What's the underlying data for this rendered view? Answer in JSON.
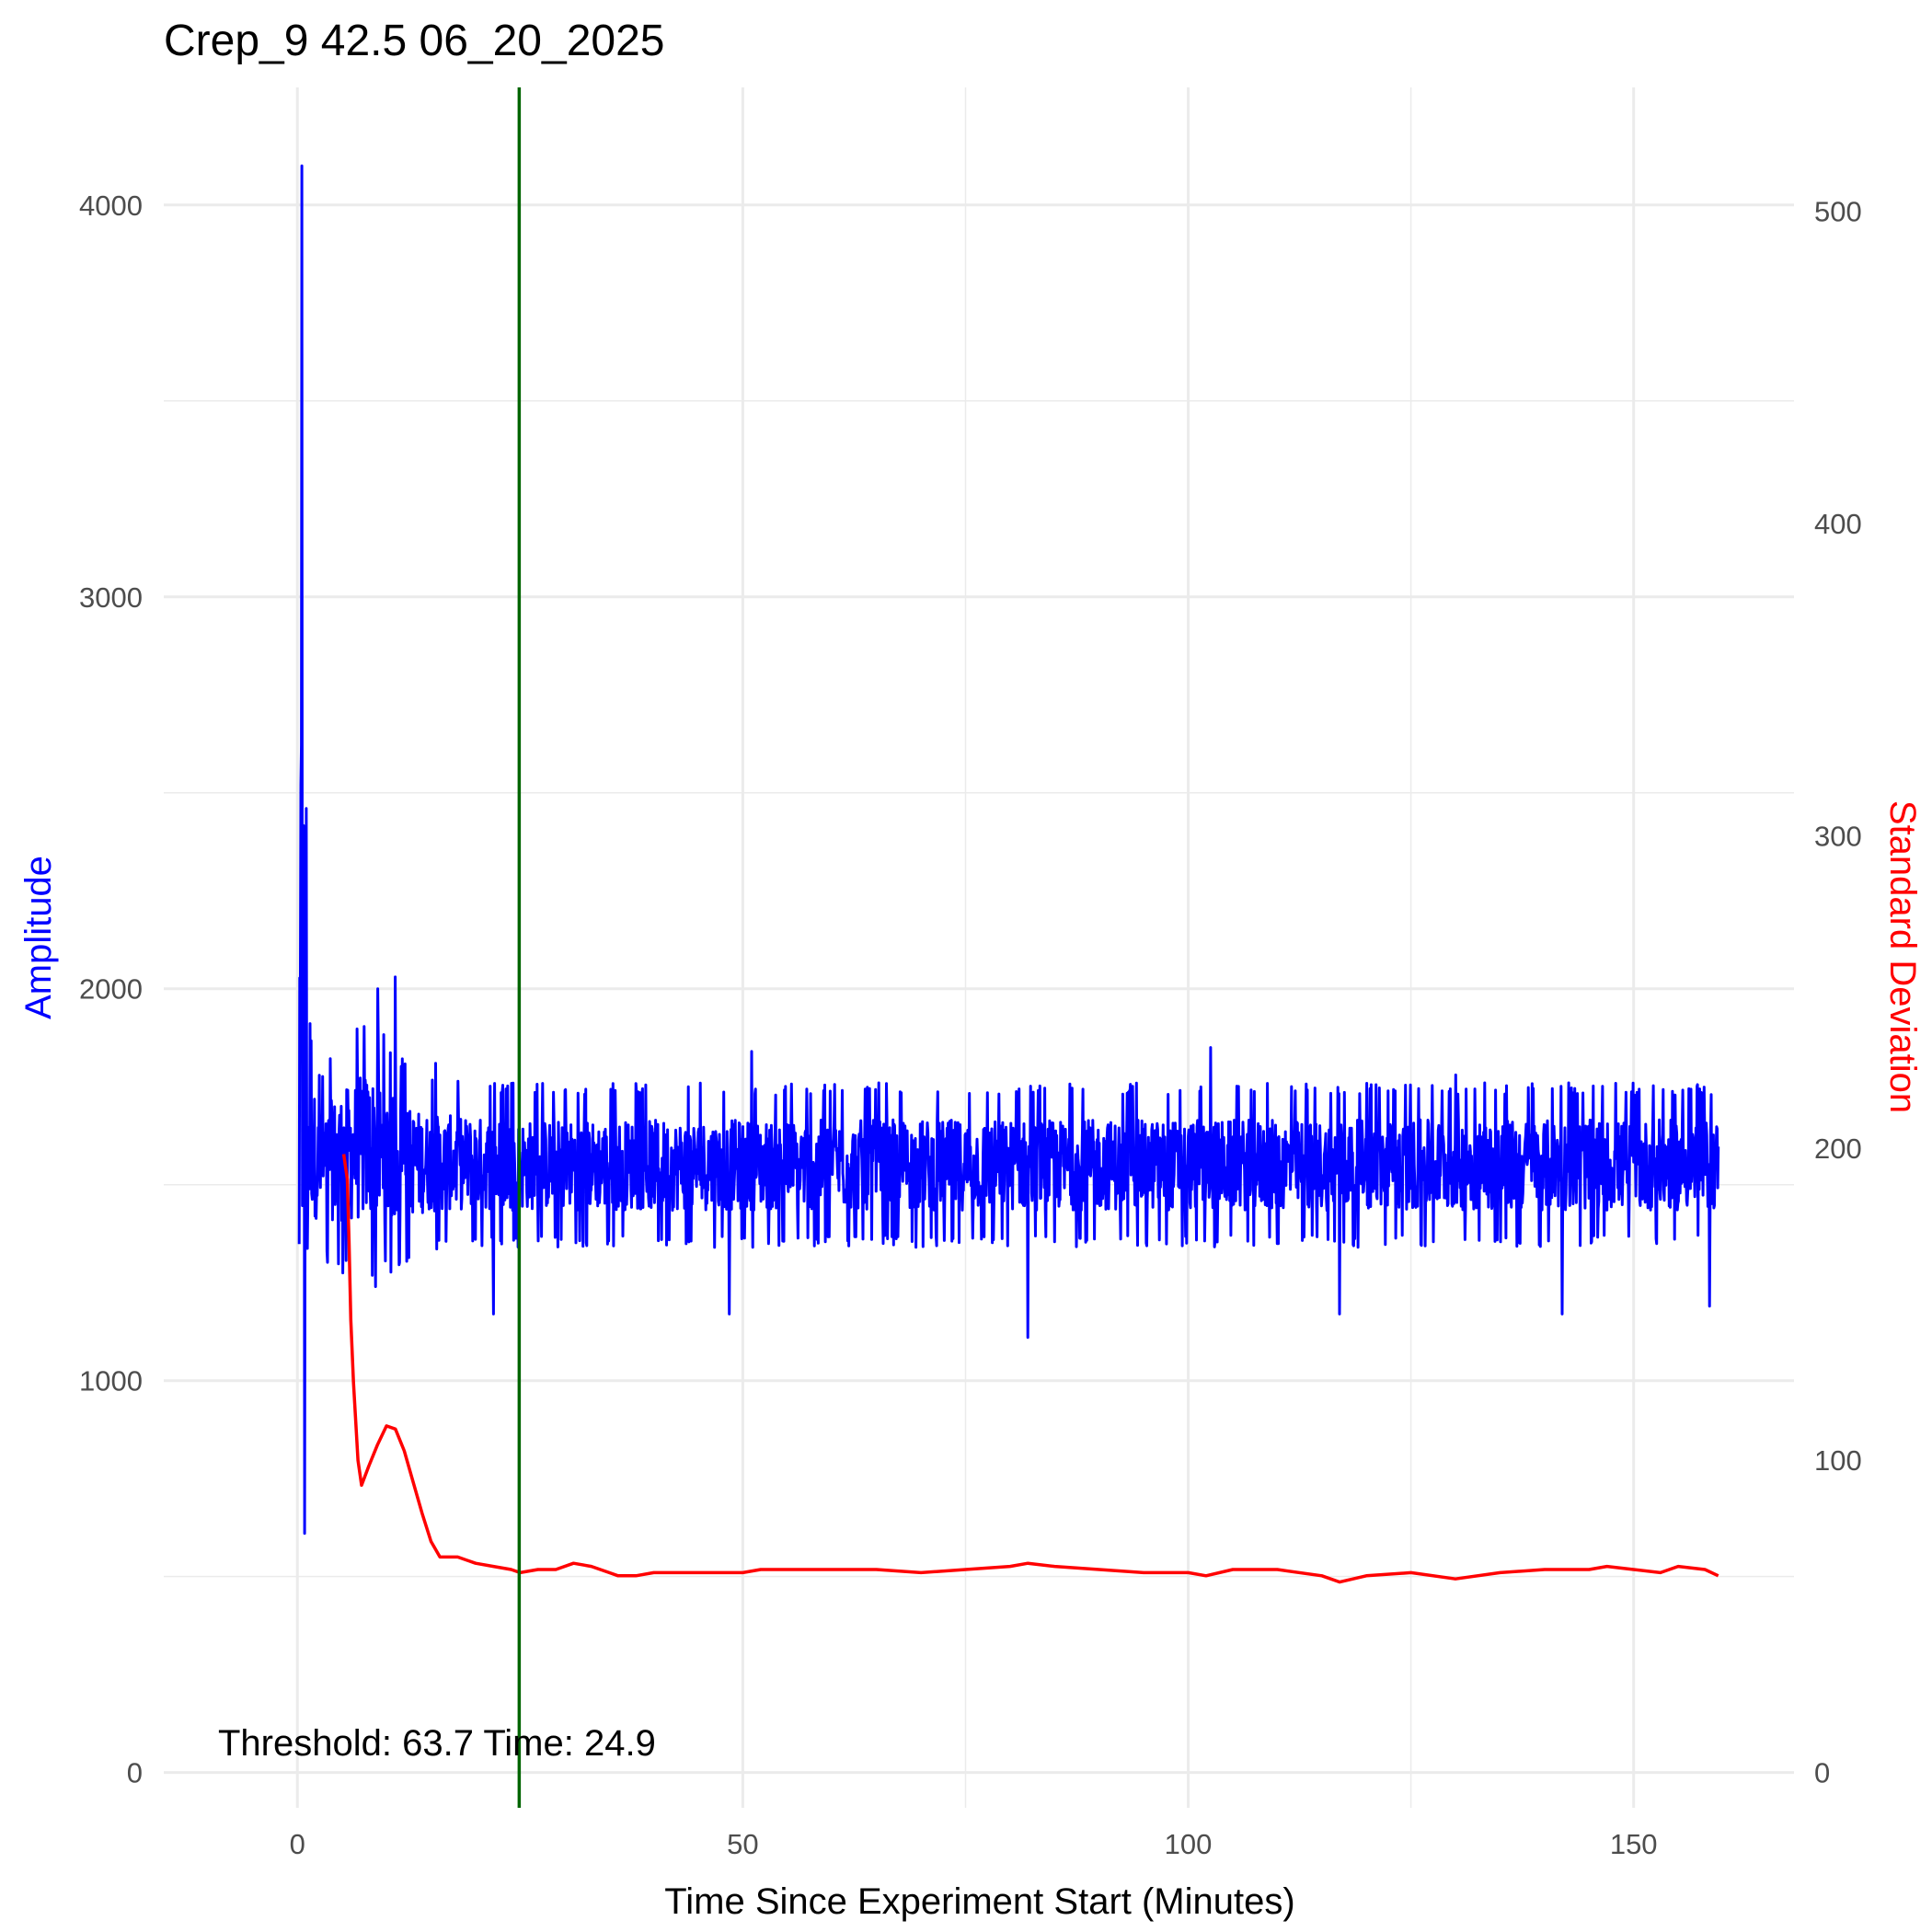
{
  "chart_data": {
    "type": "line",
    "title": "Crep_9 42.5 06_20_2025",
    "xlabel": "Time Since Experiment Start (Minutes)",
    "ylabel": "Amplitude",
    "ylabel_right": "Standard Deviation",
    "xlim": [
      -15,
      168
    ],
    "ylim": [
      -90,
      4300
    ],
    "ylim_right": [
      -11.3,
      539.6
    ],
    "x_ticks": [
      0,
      50,
      100,
      150
    ],
    "x_tick_labels": [
      "0",
      "50",
      "100",
      "150"
    ],
    "y_ticks": [
      0,
      1000,
      2000,
      3000,
      4000
    ],
    "y_tick_labels": [
      "0",
      "1000",
      "2000",
      "3000",
      "4000"
    ],
    "y_right_ticks": [
      0,
      100,
      200,
      300,
      400,
      500
    ],
    "y_right_tick_labels": [
      "0",
      "100",
      "200",
      "300",
      "400",
      "500"
    ],
    "grid": true,
    "legend": "none",
    "colors": {
      "amplitude": "#0000ff",
      "std_dev": "#ff0000",
      "threshold_line": "#006400",
      "grid": "#ebebeb"
    },
    "vline": {
      "x": 24.9
    },
    "annotation": "Threshold: 63.7 Time: 24.9",
    "series": [
      {
        "axis": "left",
        "color": "#0000ff",
        "envelope": {
          "x": [
            0.2,
            0.5,
            1,
            1.5,
            2,
            3,
            4,
            6,
            8,
            10,
            12,
            15,
            20,
            25,
            30,
            40,
            50,
            60,
            70,
            80,
            90,
            100,
            110,
            120,
            130,
            140,
            150,
            159.5
          ],
          "upper": [
            1950,
            4100,
            2450,
            2200,
            1800,
            1800,
            1850,
            1900,
            1950,
            1880,
            1820,
            1780,
            1770,
            1760,
            1760,
            1760,
            1760,
            1760,
            1760,
            1760,
            1760,
            1760,
            1760,
            1760,
            1760,
            1760,
            1760,
            1760
          ],
          "lower": [
            960,
            170,
            730,
            1200,
            1300,
            1300,
            1280,
            1260,
            1250,
            1260,
            1300,
            1330,
            1340,
            1340,
            1340,
            1340,
            1340,
            1340,
            1340,
            1340,
            1340,
            1340,
            1340,
            1340,
            1340,
            1340,
            1340,
            1340
          ]
        },
        "spikes": [
          {
            "x": 0.5,
            "y": 4100
          },
          {
            "x": 0.4,
            "y": 2520
          },
          {
            "x": 1.0,
            "y": 2460
          },
          {
            "x": 9.0,
            "y": 2000
          },
          {
            "x": 11.0,
            "y": 2030
          },
          {
            "x": 8.8,
            "y": 1240
          },
          {
            "x": 22.0,
            "y": 1170
          },
          {
            "x": 48.5,
            "y": 1170
          },
          {
            "x": 82.0,
            "y": 1110
          },
          {
            "x": 102.5,
            "y": 1850
          },
          {
            "x": 117.0,
            "y": 1170
          },
          {
            "x": 142.0,
            "y": 1170
          },
          {
            "x": 158.5,
            "y": 1190
          },
          {
            "x": 15.5,
            "y": 1810
          },
          {
            "x": 51.0,
            "y": 1840
          },
          {
            "x": 130.0,
            "y": 1780
          }
        ]
      },
      {
        "name": "Standard Deviation",
        "axis": "right",
        "color": "#ff0000",
        "x": [
          5.2,
          5.6,
          5.8,
          6.0,
          6.3,
          6.8,
          7.2,
          8,
          9,
          10,
          11,
          12,
          13,
          14,
          15,
          16,
          18,
          20,
          22,
          24,
          25,
          27,
          29,
          31,
          33,
          35,
          36,
          38,
          40,
          45,
          50,
          52,
          55,
          60,
          65,
          70,
          75,
          80,
          82,
          85,
          90,
          95,
          100,
          102,
          105,
          110,
          115,
          117,
          120,
          125,
          130,
          135,
          140,
          145,
          147,
          150,
          153,
          155,
          158,
          159.5
        ],
        "y": [
          198,
          190,
          170,
          145,
          125,
          100,
          92,
          98,
          105,
          111,
          110,
          103,
          93,
          83,
          74,
          69,
          69,
          67,
          66,
          65,
          64,
          65,
          65,
          67,
          66,
          64,
          63,
          63,
          64,
          64,
          64,
          65,
          65,
          65,
          65,
          64,
          65,
          66,
          67,
          66,
          65,
          64,
          64,
          63,
          65,
          65,
          63,
          61,
          63,
          64,
          62,
          64,
          65,
          65,
          66,
          65,
          64,
          66,
          65,
          63
        ]
      }
    ]
  }
}
